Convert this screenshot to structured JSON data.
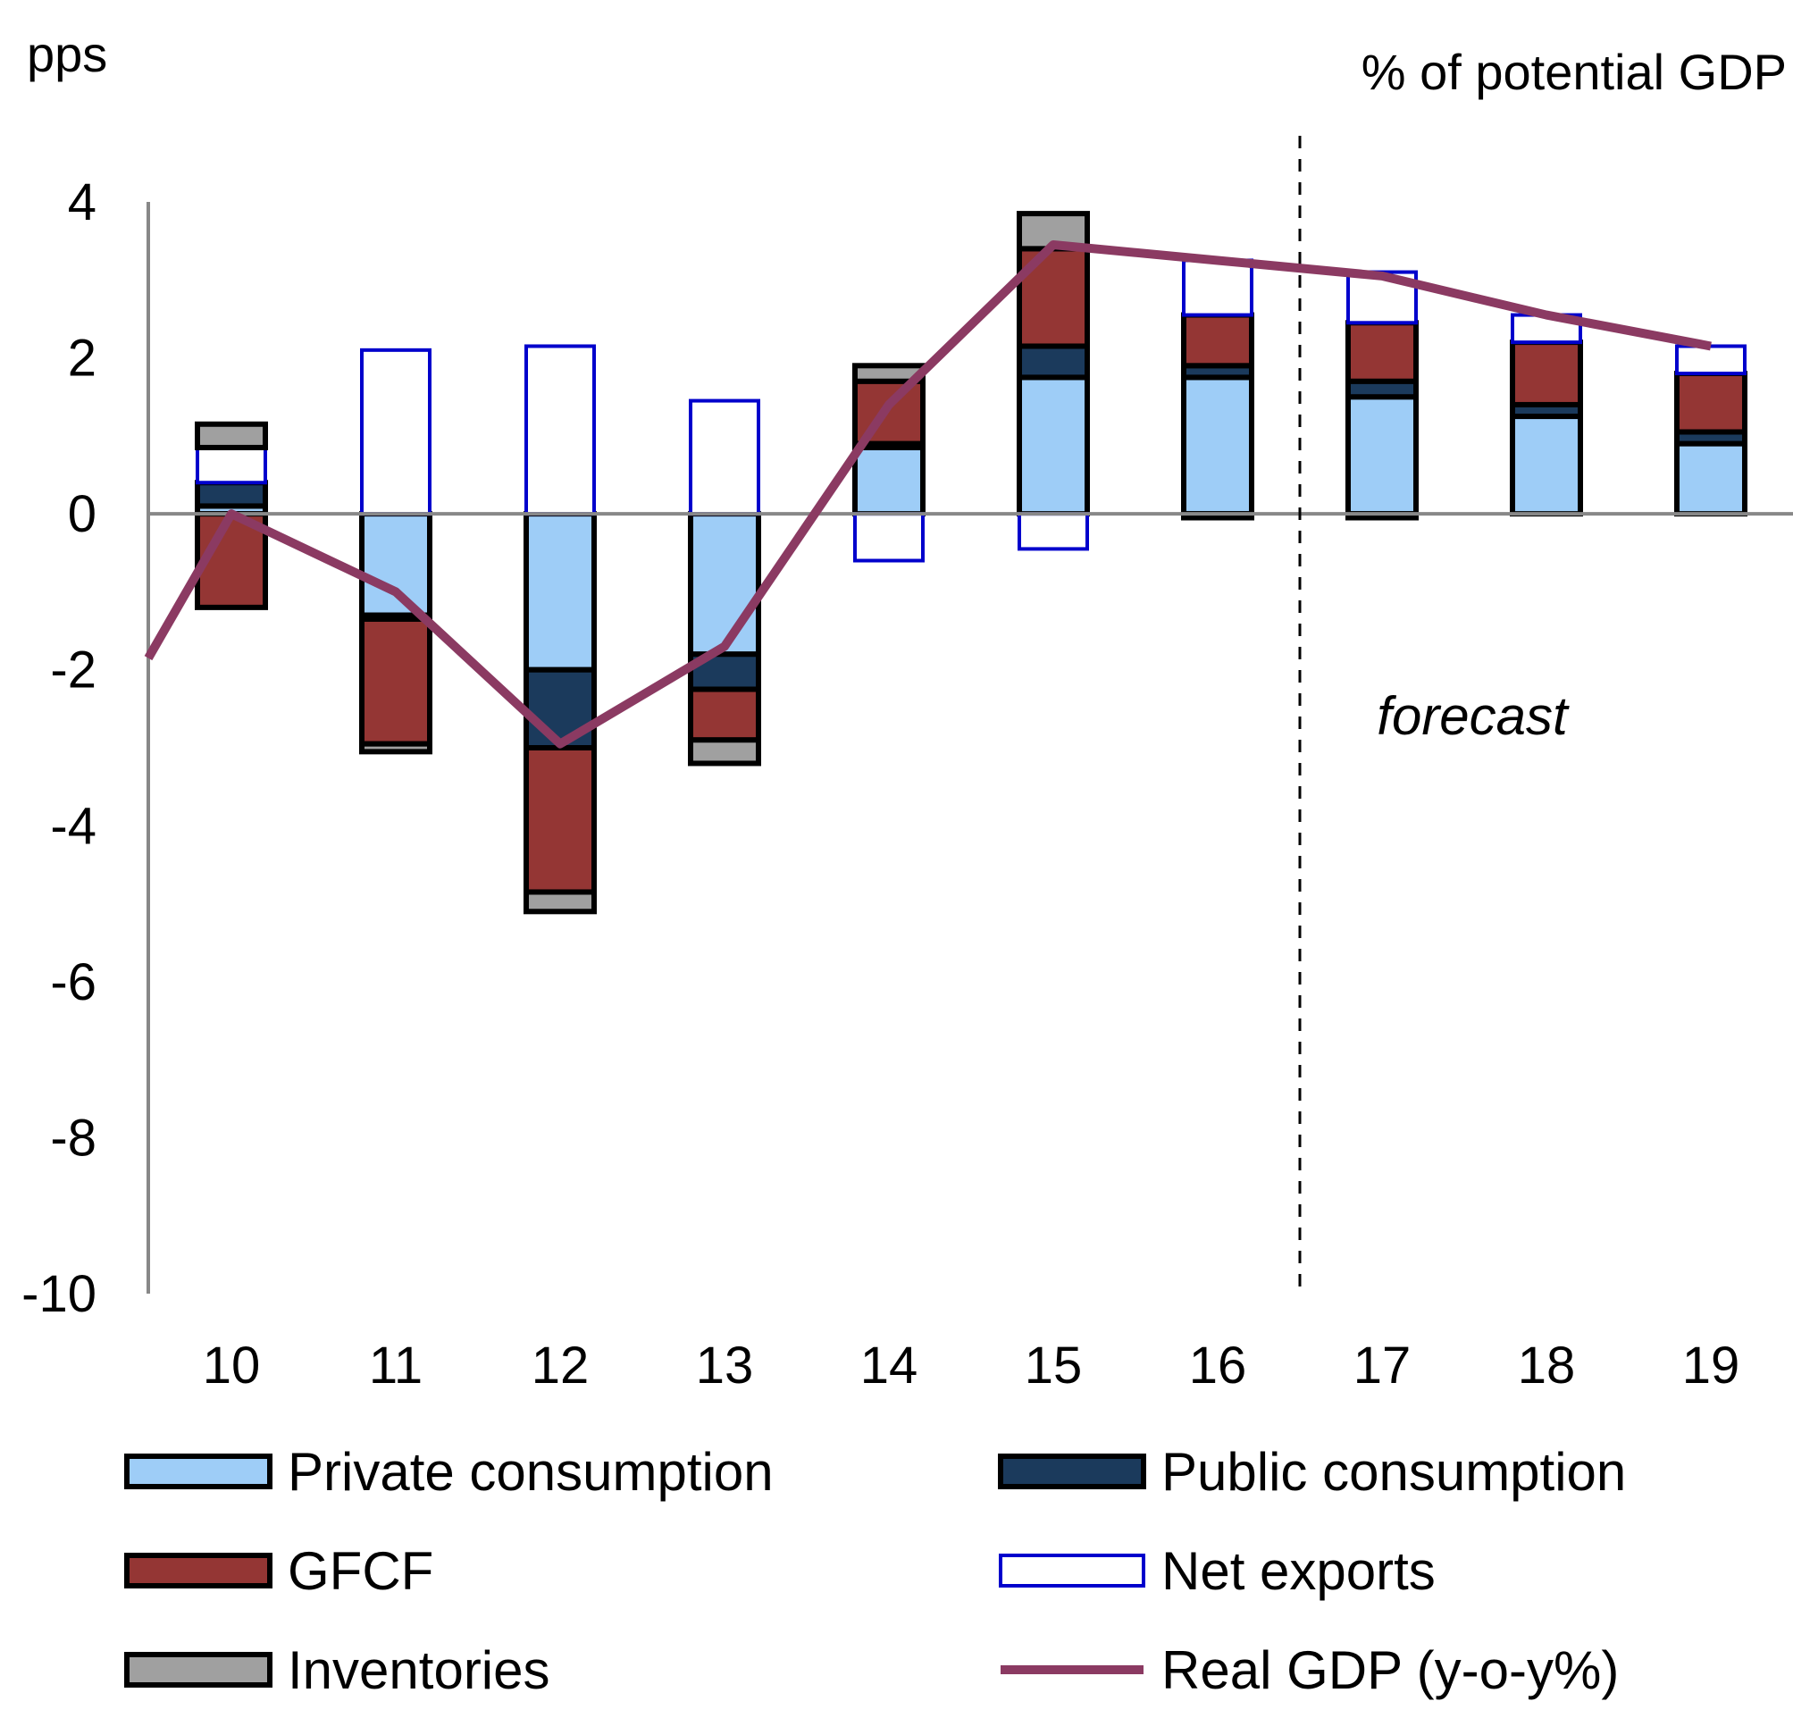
{
  "chart_data": {
    "type": "bar",
    "stacked": true,
    "y_unit_left": "pps",
    "y_unit_right": "% of potential GDP",
    "ylim": [
      -10,
      4
    ],
    "yticks": [
      4,
      2,
      0,
      -2,
      -4,
      -6,
      -8,
      -10
    ],
    "categories": [
      "10",
      "11",
      "12",
      "13",
      "14",
      "15",
      "16",
      "17",
      "18",
      "19"
    ],
    "forecast_label": "forecast",
    "forecast_start_after": "16",
    "series": [
      {
        "name": "Private consumption",
        "kind": "bar",
        "color": "#9ecdf7",
        "values": [
          0.1,
          -1.3,
          -2.0,
          -1.8,
          0.85,
          1.75,
          1.75,
          1.5,
          1.25,
          0.9
        ]
      },
      {
        "name": "Public consumption",
        "kind": "bar",
        "color": "#1b3a5c",
        "values": [
          0.3,
          -0.05,
          -1.0,
          -0.45,
          0.05,
          0.4,
          0.15,
          0.2,
          0.15,
          0.15
        ]
      },
      {
        "name": "GFCF",
        "kind": "bar",
        "color": "#943634",
        "values": [
          -1.2,
          -1.6,
          -1.85,
          -0.65,
          0.8,
          1.25,
          0.65,
          0.75,
          0.8,
          0.75
        ]
      },
      {
        "name": "Net exports",
        "kind": "bar",
        "color": "#ffffff",
        "edge": "#0000cc",
        "values": [
          0.45,
          2.1,
          2.15,
          1.45,
          -0.6,
          -0.45,
          0.7,
          0.65,
          0.35,
          0.35
        ]
      },
      {
        "name": "Inventories",
        "kind": "bar",
        "color": "#a0a0a0",
        "values": [
          0.3,
          -0.1,
          -0.25,
          -0.3,
          0.2,
          0.45,
          -0.05,
          -0.05,
          0.0,
          0.0
        ]
      },
      {
        "name": "Real GDP (y-o-y%)",
        "kind": "line",
        "color": "#8b3a62",
        "values": [
          0.0,
          -1.0,
          -2.95,
          -1.7,
          1.4,
          3.45,
          3.25,
          3.05,
          2.55,
          2.15
        ]
      }
    ],
    "line_start_value": -1.85,
    "legend_position": "bottom",
    "grid": false
  }
}
